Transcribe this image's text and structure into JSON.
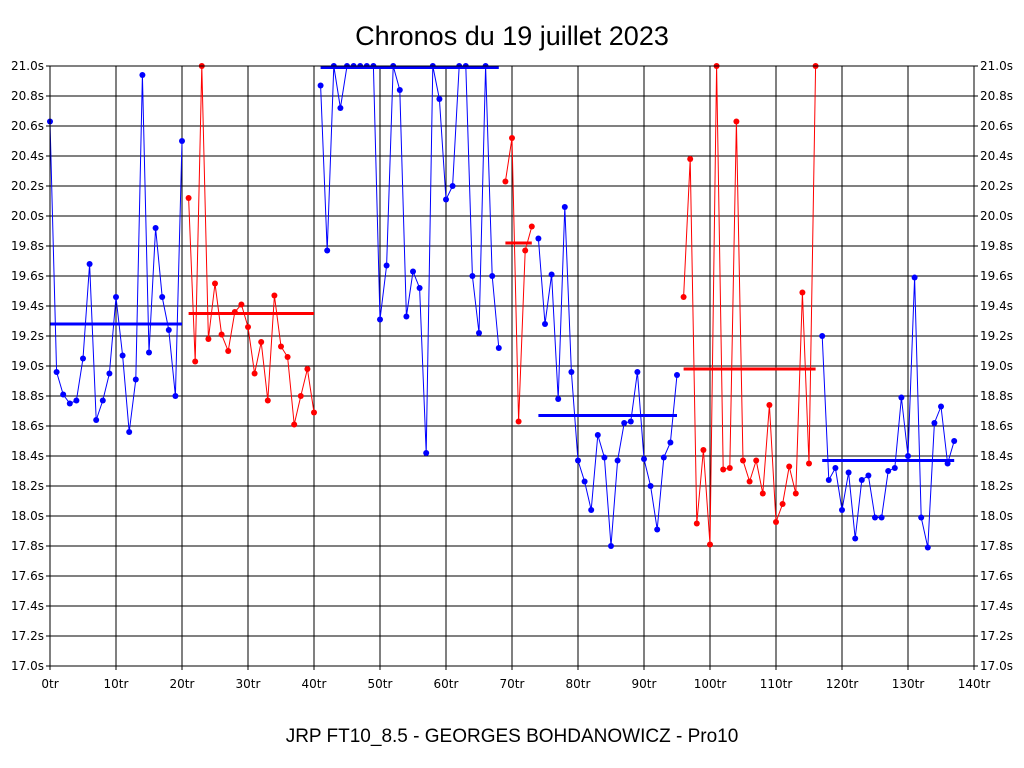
{
  "chart_data": {
    "type": "line",
    "title": "Chronos du 19 juillet 2023",
    "footer": "JRP FT10_8.5 - GEORGES BOHDANOWICZ - Pro10",
    "x_unit": "tr",
    "y_unit": "s",
    "xlim": [
      0,
      140
    ],
    "ylim": [
      17.0,
      21.0
    ],
    "x_ticks": [
      0,
      10,
      20,
      30,
      40,
      50,
      60,
      70,
      80,
      90,
      100,
      110,
      120,
      130,
      140
    ],
    "y_ticks": [
      17.0,
      17.2,
      17.4,
      17.6,
      17.8,
      18.0,
      18.2,
      18.4,
      18.6,
      18.8,
      19.0,
      19.2,
      19.4,
      19.6,
      19.8,
      20.0,
      20.2,
      20.4,
      20.6,
      20.8,
      21.0
    ],
    "x_tick_labels": [
      "0tr",
      "10tr",
      "20tr",
      "30tr",
      "40tr",
      "50tr",
      "60tr",
      "70tr",
      "80tr",
      "90tr",
      "100tr",
      "110tr",
      "120tr",
      "130tr",
      "140tr"
    ],
    "y_tick_labels": [
      "17.0s",
      "17.2s",
      "17.4s",
      "17.6s",
      "17.8s",
      "18.0s",
      "18.2s",
      "18.4s",
      "18.6s",
      "18.8s",
      "19.0s",
      "19.2s",
      "19.4s",
      "19.6s",
      "19.8s",
      "20.0s",
      "20.2s",
      "20.4s",
      "20.6s",
      "20.8s",
      "21.0s"
    ],
    "grid": true,
    "colors": {
      "blue": "#0000ff",
      "red": "#ff0000"
    },
    "stints": [
      {
        "color": "#0000ff",
        "start": 0,
        "mean": 19.28,
        "values": [
          20.63,
          18.96,
          18.81,
          18.75,
          18.77,
          19.05,
          19.68,
          18.64,
          18.77,
          18.95,
          19.46,
          19.07,
          18.56,
          18.91,
          20.94,
          19.09,
          19.92,
          19.46,
          19.24,
          18.8,
          20.5
        ]
      },
      {
        "color": "#ff0000",
        "start": 21,
        "mean": 19.35,
        "values": [
          20.12,
          19.03,
          21.0,
          19.18,
          19.55,
          19.21,
          19.1,
          19.36,
          19.41,
          19.26,
          18.95,
          19.16,
          18.77,
          19.47,
          19.13,
          19.06,
          18.61,
          18.8,
          18.98,
          18.69
        ]
      },
      {
        "color": "#0000ff",
        "start": 41,
        "mean": 20.99,
        "values": [
          20.87,
          19.77,
          21.0,
          20.72,
          21.0,
          21.0,
          21.0,
          21.0,
          21.0,
          19.31,
          19.67,
          21.0,
          20.84,
          19.33,
          19.63,
          19.52,
          18.42,
          21.0,
          20.78,
          20.11,
          20.2,
          21.0,
          21.0,
          19.6,
          19.22,
          21.0,
          19.6,
          19.12
        ]
      },
      {
        "color": "#ff0000",
        "start": 69,
        "mean": 19.82,
        "values": [
          20.23,
          20.52,
          18.63,
          19.77,
          19.93
        ]
      },
      {
        "color": "#0000ff",
        "start": 74,
        "mean": 18.67,
        "values": [
          19.85,
          19.28,
          19.61,
          18.78,
          20.06,
          18.96,
          18.37,
          18.23,
          18.04,
          18.54,
          18.39,
          17.8,
          18.37,
          18.62,
          18.63,
          18.96,
          18.38,
          18.2,
          17.91,
          18.39,
          18.49,
          18.94
        ]
      },
      {
        "color": "#ff0000",
        "start": 96,
        "mean": 18.98,
        "values": [
          19.46,
          20.38,
          17.95,
          18.44,
          17.81,
          21.0,
          18.31,
          18.32,
          20.63,
          18.37,
          18.23,
          18.37,
          18.15,
          18.74,
          17.96,
          18.08,
          18.33,
          18.15,
          19.49,
          18.35,
          21.0
        ]
      },
      {
        "color": "#0000ff",
        "start": 117,
        "mean": 18.37,
        "values": [
          19.2,
          18.24,
          18.32,
          18.04,
          18.29,
          17.85,
          18.24,
          18.27,
          17.99,
          17.99,
          18.3,
          18.32,
          18.79,
          18.4,
          19.59,
          17.99,
          17.79,
          18.62,
          18.73,
          18.35,
          18.5
        ]
      }
    ]
  }
}
